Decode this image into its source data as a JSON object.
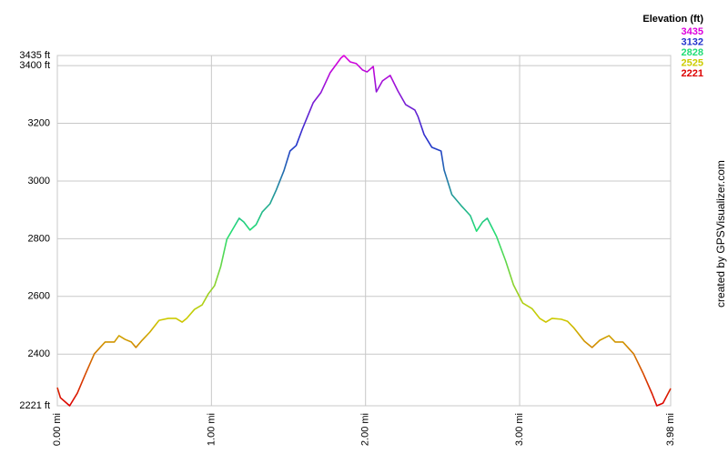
{
  "chart_data": {
    "type": "line",
    "x": [
      0.0,
      0.02,
      0.08,
      0.13,
      0.18,
      0.24,
      0.31,
      0.37,
      0.4,
      0.44,
      0.48,
      0.51,
      0.55,
      0.6,
      0.66,
      0.72,
      0.77,
      0.81,
      0.84,
      0.89,
      0.94,
      0.98,
      1.02,
      1.06,
      1.1,
      1.18,
      1.21,
      1.25,
      1.29,
      1.33,
      1.38,
      1.42,
      1.47,
      1.51,
      1.55,
      1.59,
      1.66,
      1.71,
      1.77,
      1.84,
      1.86,
      1.9,
      1.94,
      1.98,
      2.01,
      2.05,
      2.07,
      2.11,
      2.16,
      2.21,
      2.26,
      2.32,
      2.34,
      2.38,
      2.43,
      2.49,
      2.51,
      2.56,
      2.62,
      2.68,
      2.72,
      2.76,
      2.79,
      2.85,
      2.91,
      2.96,
      3.02,
      3.08,
      3.13,
      3.17,
      3.21,
      3.27,
      3.31,
      3.35,
      3.42,
      3.47,
      3.52,
      3.58,
      3.62,
      3.67,
      3.74,
      3.8,
      3.86,
      3.89,
      3.93,
      3.98
    ],
    "values": [
      2284,
      2249,
      2221,
      2265,
      2328,
      2401,
      2442,
      2442,
      2464,
      2451,
      2442,
      2423,
      2448,
      2476,
      2517,
      2524,
      2524,
      2511,
      2524,
      2555,
      2571,
      2609,
      2637,
      2703,
      2798,
      2871,
      2858,
      2830,
      2849,
      2893,
      2921,
      2968,
      3035,
      3104,
      3123,
      3180,
      3271,
      3306,
      3375,
      3426,
      3435,
      3413,
      3407,
      3385,
      3378,
      3397,
      3309,
      3347,
      3366,
      3312,
      3265,
      3246,
      3224,
      3161,
      3117,
      3104,
      3038,
      2953,
      2915,
      2880,
      2826,
      2858,
      2871,
      2808,
      2722,
      2640,
      2577,
      2558,
      2524,
      2511,
      2524,
      2521,
      2514,
      2492,
      2445,
      2423,
      2448,
      2464,
      2442,
      2442,
      2401,
      2335,
      2262,
      2221,
      2230,
      2281
    ],
    "xlim": [
      0,
      3.98
    ],
    "xticks": [
      {
        "value": 0,
        "label": "0.00 mi"
      },
      {
        "value": 1,
        "label": "1.00 mi"
      },
      {
        "value": 2,
        "label": "2.00 mi"
      },
      {
        "value": 3,
        "label": "3.00 mi"
      },
      {
        "value": 3.98,
        "label": "3.98 mi"
      }
    ],
    "ylim": [
      2221,
      3435
    ],
    "yticks": [
      {
        "value": 2221,
        "label": "2221 ft"
      },
      2400,
      2600,
      2800,
      3000,
      3200,
      {
        "value": 3400,
        "label": "3400 ft"
      },
      {
        "value": 3435,
        "label": "3435 ft"
      }
    ],
    "grid": true,
    "legend": {
      "title": "Elevation (ft)",
      "entries": [
        {
          "value": 3435,
          "color": "#dd00dd"
        },
        {
          "value": 3132,
          "color": "#2233cc"
        },
        {
          "value": 2828,
          "color": "#22dd77"
        },
        {
          "value": 2525,
          "color": "#cccc00"
        },
        {
          "value": 2221,
          "color": "#dd0000"
        }
      ]
    },
    "credit": "created by GPSVisualizer.com"
  }
}
